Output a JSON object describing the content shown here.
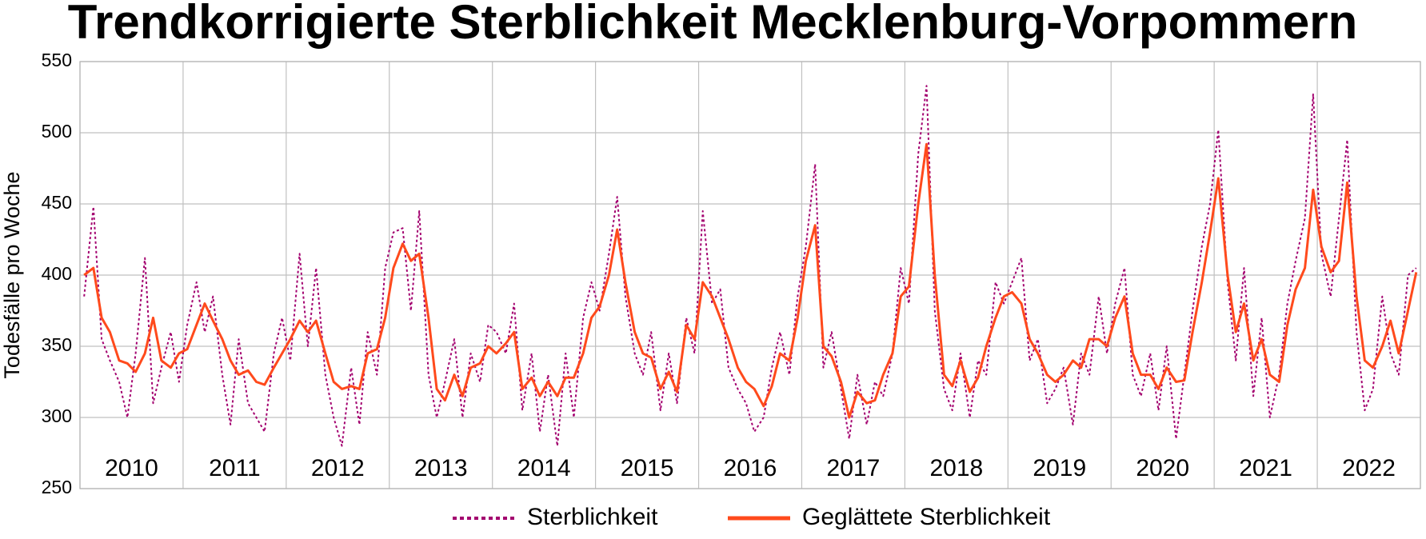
{
  "chart_data": {
    "type": "line",
    "title": "Trendkorrigierte Sterblichkeit Mecklenburg-Vorpommern",
    "y_label": "Todesfälle pro Woche",
    "year_labels": [
      "2010",
      "2011",
      "2012",
      "2013",
      "2014",
      "2015",
      "2016",
      "2017",
      "2018",
      "2019",
      "2020",
      "2021",
      "2022"
    ],
    "xlim": [
      2010,
      2023
    ],
    "xticks": [
      2010,
      2011,
      2012,
      2013,
      2014,
      2015,
      2016,
      2017,
      2018,
      2019,
      2020,
      2021,
      2022,
      2023
    ],
    "ylim": [
      250,
      550
    ],
    "yticks": [
      250,
      300,
      350,
      400,
      450,
      500,
      550
    ],
    "grid": true,
    "legend": "bottom",
    "x": [
      2010.04,
      2010.13,
      2010.21,
      2010.29,
      2010.38,
      2010.46,
      2010.54,
      2010.63,
      2010.71,
      2010.79,
      2010.88,
      2010.96,
      2011.04,
      2011.13,
      2011.21,
      2011.29,
      2011.38,
      2011.46,
      2011.54,
      2011.63,
      2011.71,
      2011.79,
      2011.88,
      2011.96,
      2012.04,
      2012.13,
      2012.21,
      2012.29,
      2012.38,
      2012.46,
      2012.54,
      2012.63,
      2012.71,
      2012.79,
      2012.88,
      2012.96,
      2013.04,
      2013.13,
      2013.21,
      2013.29,
      2013.38,
      2013.46,
      2013.54,
      2013.63,
      2013.71,
      2013.79,
      2013.88,
      2013.96,
      2014.04,
      2014.13,
      2014.21,
      2014.29,
      2014.38,
      2014.46,
      2014.54,
      2014.63,
      2014.71,
      2014.79,
      2014.88,
      2014.96,
      2015.04,
      2015.13,
      2015.21,
      2015.29,
      2015.38,
      2015.46,
      2015.54,
      2015.63,
      2015.71,
      2015.79,
      2015.88,
      2015.96,
      2016.04,
      2016.13,
      2016.21,
      2016.29,
      2016.38,
      2016.46,
      2016.54,
      2016.63,
      2016.71,
      2016.79,
      2016.88,
      2016.96,
      2017.04,
      2017.13,
      2017.21,
      2017.29,
      2017.38,
      2017.46,
      2017.54,
      2017.63,
      2017.71,
      2017.79,
      2017.88,
      2017.96,
      2018.04,
      2018.13,
      2018.21,
      2018.29,
      2018.38,
      2018.46,
      2018.54,
      2018.63,
      2018.71,
      2018.79,
      2018.88,
      2018.96,
      2019.04,
      2019.13,
      2019.21,
      2019.29,
      2019.38,
      2019.46,
      2019.54,
      2019.63,
      2019.71,
      2019.79,
      2019.88,
      2019.96,
      2020.04,
      2020.13,
      2020.21,
      2020.29,
      2020.38,
      2020.46,
      2020.54,
      2020.63,
      2020.71,
      2020.79,
      2020.88,
      2020.96,
      2021.04,
      2021.13,
      2021.21,
      2021.29,
      2021.38,
      2021.46,
      2021.54,
      2021.63,
      2021.71,
      2021.79,
      2021.88,
      2021.96,
      2022.04,
      2022.13,
      2022.21,
      2022.29,
      2022.38,
      2022.46,
      2022.54,
      2022.63,
      2022.71,
      2022.79,
      2022.88,
      2022.96
    ],
    "series": [
      {
        "name": "Sterblichkeit",
        "color": "#a3006f",
        "dash": "dotted",
        "values": [
          385,
          448,
          355,
          340,
          325,
          300,
          345,
          412,
          310,
          335,
          360,
          325,
          365,
          395,
          360,
          385,
          330,
          295,
          355,
          310,
          300,
          290,
          345,
          370,
          340,
          415,
          350,
          405,
          330,
          300,
          280,
          335,
          295,
          360,
          330,
          405,
          430,
          433,
          375,
          445,
          330,
          300,
          325,
          355,
          300,
          345,
          325,
          365,
          360,
          345,
          380,
          305,
          345,
          290,
          330,
          280,
          345,
          300,
          370,
          395,
          375,
          415,
          455,
          385,
          345,
          330,
          360,
          305,
          345,
          310,
          370,
          345,
          445,
          380,
          390,
          335,
          320,
          310,
          290,
          300,
          335,
          360,
          330,
          385,
          420,
          478,
          335,
          360,
          320,
          285,
          330,
          295,
          325,
          315,
          345,
          405,
          380,
          485,
          533,
          375,
          320,
          305,
          345,
          300,
          340,
          330,
          395,
          380,
          395,
          412,
          340,
          355,
          310,
          320,
          335,
          295,
          345,
          330,
          385,
          345,
          380,
          405,
          330,
          315,
          345,
          305,
          350,
          285,
          330,
          375,
          420,
          450,
          502,
          395,
          340,
          405,
          315,
          370,
          300,
          330,
          380,
          410,
          440,
          527,
          415,
          385,
          440,
          495,
          360,
          305,
          320,
          385,
          345,
          330,
          400,
          405
        ]
      },
      {
        "name": "Geglättete Sterblichkeit",
        "color": "#ff4a1c",
        "dash": "solid",
        "values": [
          400,
          405,
          370,
          360,
          340,
          338,
          332,
          345,
          370,
          340,
          335,
          345,
          348,
          365,
          380,
          368,
          355,
          340,
          330,
          333,
          325,
          323,
          335,
          345,
          355,
          368,
          360,
          368,
          345,
          325,
          320,
          322,
          320,
          345,
          348,
          370,
          405,
          422,
          410,
          415,
          370,
          320,
          312,
          330,
          315,
          335,
          338,
          350,
          345,
          352,
          360,
          320,
          328,
          315,
          325,
          315,
          328,
          328,
          345,
          370,
          378,
          400,
          432,
          395,
          360,
          345,
          342,
          320,
          332,
          318,
          365,
          355,
          395,
          385,
          370,
          355,
          335,
          325,
          320,
          308,
          322,
          345,
          340,
          370,
          410,
          435,
          350,
          343,
          325,
          300,
          318,
          310,
          312,
          330,
          345,
          385,
          392,
          450,
          492,
          400,
          330,
          322,
          340,
          318,
          328,
          350,
          370,
          385,
          388,
          380,
          355,
          345,
          330,
          325,
          330,
          340,
          335,
          355,
          355,
          350,
          370,
          385,
          345,
          330,
          330,
          320,
          335,
          325,
          326,
          360,
          395,
          430,
          468,
          400,
          360,
          380,
          340,
          355,
          330,
          325,
          365,
          390,
          405,
          460,
          420,
          402,
          410,
          465,
          385,
          340,
          335,
          350,
          368,
          345,
          375,
          402
        ]
      }
    ]
  }
}
